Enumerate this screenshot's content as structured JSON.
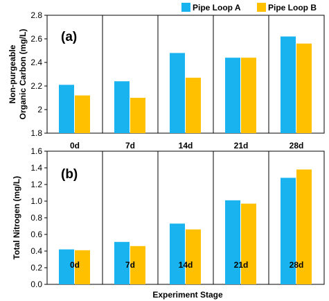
{
  "legend": {
    "items": [
      {
        "label": "Pipe Loop A",
        "color": "#19B4F0"
      },
      {
        "label": "Pipe Loop B",
        "color": "#FFC000"
      }
    ],
    "placement": "top-right"
  },
  "xlabel": "Experiment Stage",
  "chart_data": [
    {
      "type": "bar",
      "panel_label": "(a)",
      "categories": [
        "0d",
        "7d",
        "14d",
        "21d",
        "28d"
      ],
      "series": [
        {
          "name": "Pipe Loop A",
          "color": "#19B4F0",
          "values": [
            2.21,
            2.24,
            2.48,
            2.44,
            2.62
          ]
        },
        {
          "name": "Pipe Loop B",
          "color": "#FFC000",
          "values": [
            2.12,
            2.1,
            2.27,
            2.44,
            2.56
          ]
        }
      ],
      "ylabel_lines": [
        "Non-purgeable",
        "Organic Carbon (mg/L)"
      ],
      "ylim": [
        1.8,
        2.8
      ],
      "yticks": [
        "1.8",
        "2",
        "2.2",
        "2.4",
        "2.6",
        "2.8"
      ],
      "grid": false
    },
    {
      "type": "bar",
      "panel_label": "(b)",
      "categories": [
        "0d",
        "7d",
        "14d",
        "21d",
        "28d"
      ],
      "series": [
        {
          "name": "Pipe Loop A",
          "color": "#19B4F0",
          "values": [
            0.42,
            0.51,
            0.73,
            1.01,
            1.28
          ]
        },
        {
          "name": "Pipe Loop B",
          "color": "#FFC000",
          "values": [
            0.41,
            0.46,
            0.66,
            0.97,
            1.38
          ]
        }
      ],
      "ylabel_lines": [
        "Total Nitrogen (mg/L)"
      ],
      "ylim": [
        0.0,
        1.6
      ],
      "yticks": [
        "0.0",
        "0.2",
        "0.4",
        "0.6",
        "0.8",
        "1.0",
        "1.2",
        "1.4",
        "1.6"
      ],
      "grid": false
    }
  ]
}
